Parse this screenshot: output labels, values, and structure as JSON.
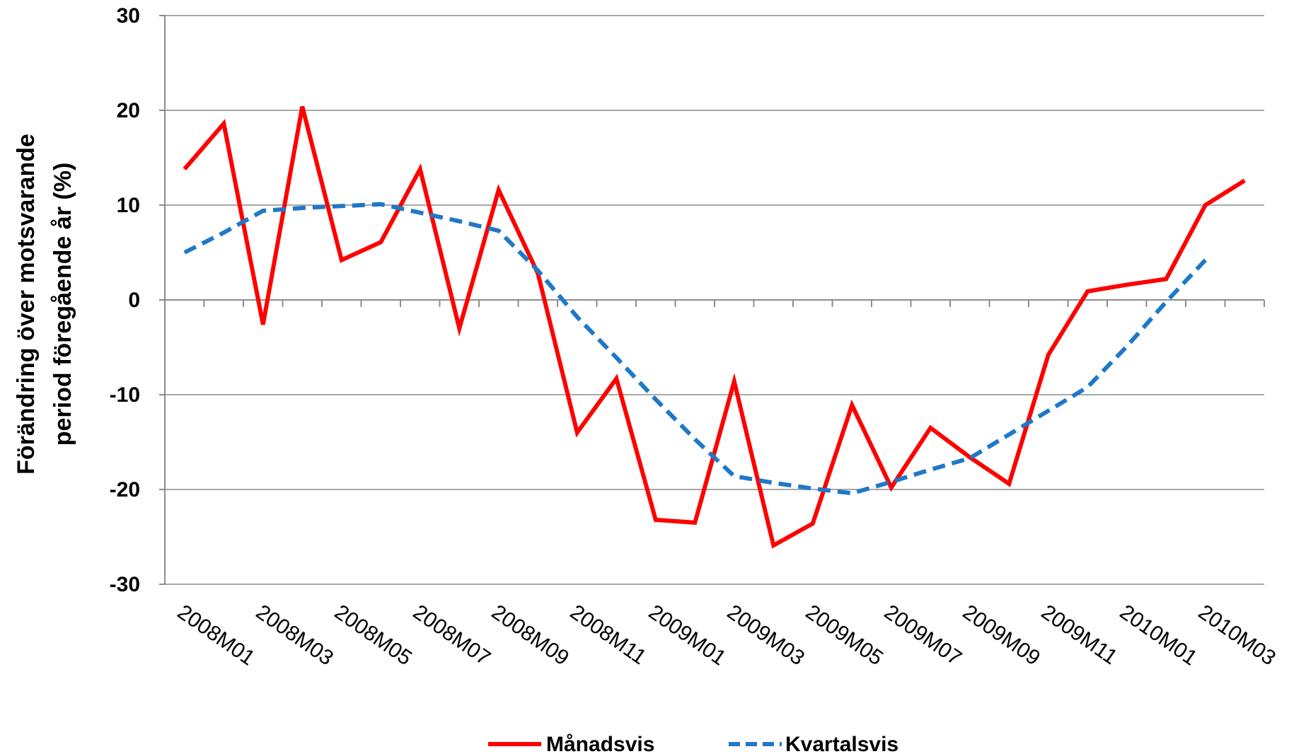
{
  "chart_data": {
    "type": "line",
    "ylabel_lines": [
      "Förändring över motsvarande",
      "period föregående år (%)"
    ],
    "ylim": [
      -30,
      30
    ],
    "yticks": [
      -30,
      -20,
      -10,
      0,
      10,
      20,
      30
    ],
    "x": [
      "2008M01",
      "2008M02",
      "2008M03",
      "2008M04",
      "2008M05",
      "2008M06",
      "2008M07",
      "2008M08",
      "2008M09",
      "2008M10",
      "2008M11",
      "2008M12",
      "2009M01",
      "2009M02",
      "2009M03",
      "2009M04",
      "2009M05",
      "2009M06",
      "2009M07",
      "2009M08",
      "2009M09",
      "2009M10",
      "2009M11",
      "2009M12",
      "2010M01",
      "2010M02",
      "2010M03",
      "2010M04"
    ],
    "xtick_labels": [
      "2008M01",
      "2008M03",
      "2008M05",
      "2008M07",
      "2008M09",
      "2008M11",
      "2009M01",
      "2009M03",
      "2009M05",
      "2009M07",
      "2009M09",
      "2009M11",
      "2010M01",
      "2010M03"
    ],
    "grid": true,
    "legend_position": "bottom",
    "series": [
      {
        "name": "Månadsvis",
        "color": "#ff0000",
        "style": "solid",
        "values": [
          13.8,
          18.6,
          -2.6,
          20.4,
          4.2,
          6.1,
          13.8,
          -3.0,
          11.6,
          2.8,
          -14.0,
          -8.3,
          -23.2,
          -23.5,
          -8.6,
          -25.9,
          -23.6,
          -11.1,
          -19.8,
          -13.5,
          -16.6,
          -19.4,
          -5.8,
          0.9,
          1.6,
          2.2,
          10.0,
          12.6
        ]
      },
      {
        "name": "Kvartalsvis",
        "color": "#1f78c8",
        "style": "dashed",
        "values": [
          5.0,
          7.1,
          9.4,
          9.7,
          9.9,
          10.1,
          9.2,
          8.3,
          7.3,
          3.1,
          -1.8,
          -6.1,
          -10.5,
          -14.7,
          -18.6,
          -19.3,
          -19.9,
          -20.4,
          -19.2,
          -17.9,
          -16.7,
          -14.2,
          -11.7,
          -9.2,
          -4.9,
          -0.2,
          4.2,
          null
        ]
      }
    ]
  }
}
